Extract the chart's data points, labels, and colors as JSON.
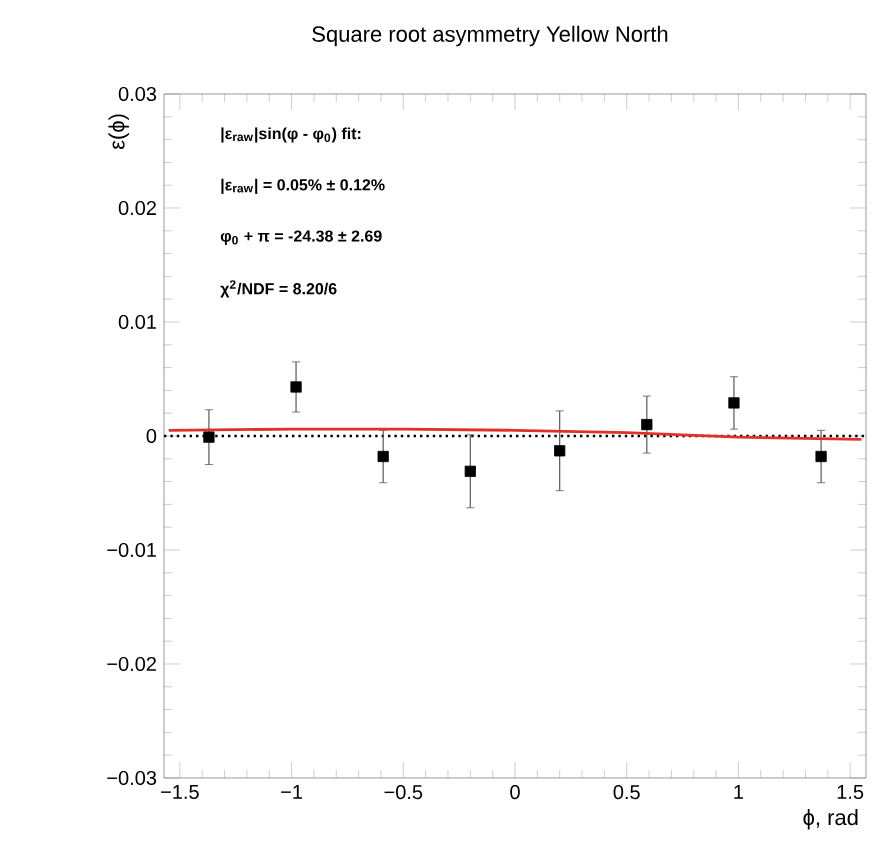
{
  "chart_data": {
    "type": "scatter",
    "title": "Square root asymmetry Yellow North",
    "xlabel": "ϕ, rad",
    "ylabel": "ε(ϕ)",
    "xlim": [
      -1.571,
      1.571
    ],
    "ylim": [
      -0.03,
      0.03
    ],
    "xticks": [
      {
        "value": -1.5,
        "label": "−1.5"
      },
      {
        "value": -1,
        "label": "−1"
      },
      {
        "value": -0.5,
        "label": "−0.5"
      },
      0,
      0.5,
      1,
      1.5
    ],
    "yticks": [
      {
        "value": -0.03,
        "label": "−0.03"
      },
      {
        "value": -0.02,
        "label": "−0.02"
      },
      {
        "value": -0.01,
        "label": "−0.01"
      },
      0,
      0.01,
      0.02,
      0.03
    ],
    "series": [
      {
        "marker": "square",
        "color": "#000000",
        "x": [
          -1.37,
          -0.98,
          -0.59,
          -0.2,
          0.2,
          0.59,
          0.98,
          1.37
        ],
        "values": [
          -0.0001,
          0.0043,
          -0.0018,
          -0.0031,
          -0.0013,
          0.001,
          0.0029,
          -0.0018
        ],
        "errors": [
          0.0024,
          0.0022,
          0.0023,
          0.0032,
          0.0035,
          0.0025,
          0.0023,
          0.0023
        ]
      },
      {
        "type": "line",
        "color": "#e0302a",
        "x": [
          -1.55,
          -1.0,
          -0.5,
          0.0,
          0.5,
          1.0,
          1.55
        ],
        "values": [
          0.0005,
          0.0006,
          0.0006,
          0.0005,
          0.0003,
          -0.0001,
          -0.0003
        ]
      }
    ],
    "ref_lines": [
      {
        "axis": "y",
        "value": 0,
        "color": "#000000",
        "line_style": "dotted"
      }
    ],
    "annotations": [
      "|ε$_{raw}$|sin(φ - φ$_{0}$) fit:",
      "|ε$_{raw}$| = 0.05% ± 0.12%",
      "φ$_{0}$ + π = -24.38 ± 2.69",
      "χ$^{2}$/NDF = 8.20/6"
    ]
  }
}
